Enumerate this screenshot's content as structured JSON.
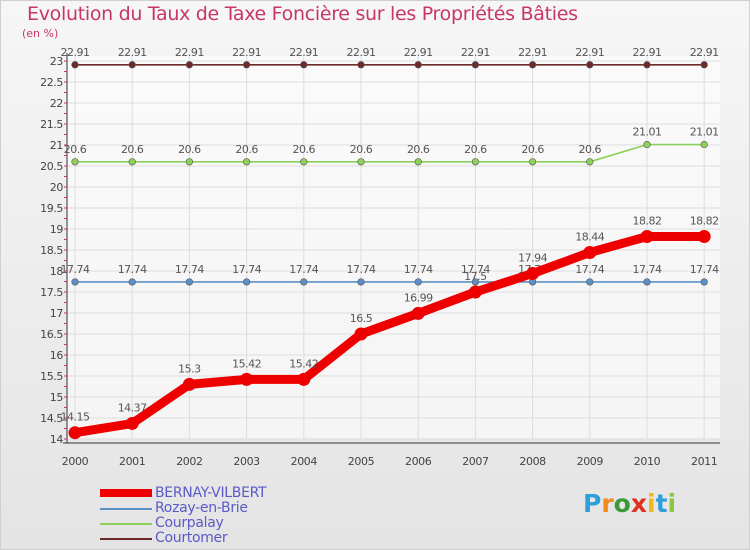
{
  "header": {
    "title": "Evolution du Taux de Taxe Foncière sur les Propriétés Bâties",
    "unit": "(en %)"
  },
  "chart_data": {
    "type": "line",
    "title": "Evolution du Taux de Taxe Foncière sur les Propriétés Bâties",
    "ylabel": "(en %)",
    "xlabel": "",
    "ylim": [
      14,
      23
    ],
    "y_step": 0.5,
    "grid": true,
    "categories": [
      "2000",
      "2001",
      "2002",
      "2003",
      "2004",
      "2005",
      "2006",
      "2007",
      "2008",
      "2009",
      "2010",
      "2011"
    ],
    "y_ticks": [
      "14",
      "14.5",
      "15",
      "15.5",
      "16",
      "16.5",
      "17",
      "17.5",
      "18",
      "18.5",
      "19",
      "19.5",
      "20",
      "20.5",
      "21",
      "21.5",
      "22",
      "22.5",
      "23"
    ],
    "series": [
      {
        "name": "Courtomer",
        "color": "#6e2a2a",
        "values": [
          22.91,
          22.91,
          22.91,
          22.91,
          22.91,
          22.91,
          22.91,
          22.91,
          22.91,
          22.91,
          22.91,
          22.91
        ],
        "labels": [
          "22.91",
          "22.91",
          "22.91",
          "22.91",
          "22.91",
          "22.91",
          "22.91",
          "22.91",
          "22.91",
          "22.91",
          "22.91",
          "22.91"
        ]
      },
      {
        "name": "Courpalay",
        "color": "#8dd05a",
        "values": [
          20.6,
          20.6,
          20.6,
          20.6,
          20.6,
          20.6,
          20.6,
          20.6,
          20.6,
          20.6,
          21.01,
          21.01
        ],
        "labels": [
          "20.6",
          "20.6",
          "20.6",
          "20.6",
          "20.6",
          "20.6",
          "20.6",
          "20.6",
          "20.6",
          "20.6",
          "21.01",
          "21.01"
        ]
      },
      {
        "name": "Rozay-en-Brie",
        "color": "#5b91c6",
        "values": [
          17.74,
          17.74,
          17.74,
          17.74,
          17.74,
          17.74,
          17.74,
          17.74,
          17.74,
          17.74,
          17.74,
          17.74
        ],
        "labels": [
          "17.74",
          "17.74",
          "17.74",
          "17.74",
          "17.74",
          "17.74",
          "17.74",
          "17.74",
          "17.74",
          "17.74",
          "17.74",
          "17.74"
        ]
      },
      {
        "name": "BERNAY-VILBERT",
        "color": "#ee0000",
        "values": [
          14.15,
          14.37,
          15.3,
          15.42,
          15.42,
          16.5,
          16.99,
          17.5,
          17.94,
          18.44,
          18.82,
          18.82
        ],
        "labels": [
          "14.15",
          "14.37",
          "15.3",
          "15.42",
          "15.42",
          "16.5",
          "16.99",
          "17.5",
          "17.94",
          "18.44",
          "18.82",
          "18.82"
        ]
      }
    ]
  },
  "legend": {
    "items": [
      {
        "name": "BERNAY-VILBERT",
        "color": "#ee0000",
        "thick": true
      },
      {
        "name": "Rozay-en-Brie",
        "color": "#5b91c6",
        "thick": false
      },
      {
        "name": "Courpalay",
        "color": "#8dd05a",
        "thick": false
      },
      {
        "name": "Courtomer",
        "color": "#6e2a2a",
        "thick": false
      }
    ]
  },
  "brand": {
    "logo_letters": [
      "P",
      "r",
      "o",
      "x",
      "i",
      "t",
      "i"
    ],
    "logo_colors": [
      "#2f9fd8",
      "#f08a1c",
      "#3a9a3a",
      "#e0301e",
      "#f0b81c",
      "#2f9fd8",
      "#8cc63f"
    ]
  }
}
